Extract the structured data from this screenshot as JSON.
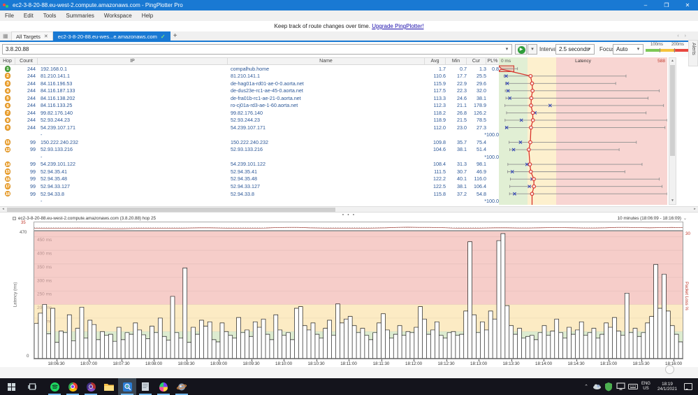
{
  "window": {
    "title": "ec2-3-8-20-88.eu-west-2.compute.amazonaws.com - PingPlotter Pro"
  },
  "menu": {
    "items": [
      "File",
      "Edit",
      "Tools",
      "Summaries",
      "Workspace",
      "Help"
    ]
  },
  "notice": {
    "text": "Keep track of route changes over time.",
    "link": "Upgrade PingPlotter!"
  },
  "tabs": {
    "all_targets": "All Targets",
    "active": "ec2-3-8-20-88.eu-wes...e.amazonaws.com"
  },
  "toolbar": {
    "target_value": "3.8.20.88",
    "interval_label": "Interval",
    "interval_value": "2.5 seconds",
    "focus_label": "Focus",
    "focus_value": "Auto",
    "legend_100": "100ms",
    "legend_200": "200ms"
  },
  "alerts_label": "Alerts",
  "icons": {
    "dropdown": "▾",
    "close": "✕",
    "check": "✓",
    "add": "+",
    "play": "▶",
    "up": "▲",
    "down": "▼",
    "left": "◂",
    "right": "▸",
    "grid": "▦",
    "dots": "● ● ●",
    "chevron_up": "⌃",
    "minimize": "–",
    "maximize": "❐",
    "range_dd": "⌄"
  },
  "table": {
    "headers": {
      "hop": "Hop",
      "count": "Count",
      "ip": "IP",
      "name": "Name",
      "avg": "Avg",
      "min": "Min",
      "cur": "Cur",
      "pl": "PL%"
    },
    "latency_header": "Latency",
    "scale_left": "0 ms",
    "scale_right": "588",
    "rows": [
      {
        "hop": "1",
        "badge": "green",
        "count": "244",
        "ip": "192.168.0.1",
        "name": "compalhub.home",
        "avg": "1.7",
        "min": "0.7",
        "cur": "1.3",
        "pl": "0.8",
        "max": 65,
        "selected": true
      },
      {
        "hop": "2",
        "badge": "orange",
        "count": "244",
        "ip": "81.210.141.1",
        "name": "81.210.141.1",
        "avg": "110.6",
        "min": "17.7",
        "cur": "25.5",
        "pl": "",
        "max": 444
      },
      {
        "hop": "3",
        "badge": "orange",
        "count": "244",
        "ip": "84.116.196.53",
        "name": "de-hag01a-rd01-ae-0-0.aorta.net",
        "avg": "115.9",
        "min": "22.9",
        "cur": "29.6",
        "pl": "",
        "max": 408
      },
      {
        "hop": "4",
        "badge": "orange",
        "count": "244",
        "ip": "84.116.187.133",
        "name": "de-dus23e-rc1-ae-45-0.aorta.net",
        "avg": "117.5",
        "min": "22.3",
        "cur": "32.0",
        "pl": "",
        "max": 560
      },
      {
        "hop": "5",
        "badge": "orange",
        "count": "244",
        "ip": "84.116.138.202",
        "name": "de-fra01b-rc1-ae-21-0.aorta.net",
        "avg": "113.3",
        "min": "24.6",
        "cur": "38.1",
        "pl": "",
        "max": 521
      },
      {
        "hop": "6",
        "badge": "orange",
        "count": "244",
        "ip": "84.116.133.25",
        "name": "ro-cj01a-rd3-ae-1-60.aorta.net",
        "avg": "112.3",
        "min": "21.1",
        "cur": "178.9",
        "pl": "",
        "max": 575
      },
      {
        "hop": "7",
        "badge": "orange",
        "count": "244",
        "ip": "99.82.176.140",
        "name": "99.82.176.140",
        "avg": "118.2",
        "min": "26.8",
        "cur": "126.2",
        "pl": "",
        "max": 514
      },
      {
        "hop": "8",
        "badge": "orange",
        "count": "244",
        "ip": "52.93.244.23",
        "name": "52.93.244.23",
        "avg": "118.9",
        "min": "21.5",
        "cur": "78.5",
        "pl": "",
        "max": 588
      },
      {
        "hop": "9",
        "badge": "orange",
        "count": "244",
        "ip": "54.239.107.171",
        "name": "54.239.107.171",
        "avg": "112.0",
        "min": "23.0",
        "cur": "27.3",
        "pl": "",
        "max": 580
      },
      {
        "hop": "",
        "badge": "",
        "count": "",
        "ip": "-",
        "name": "",
        "avg": "",
        "min": "",
        "cur": "*",
        "pl": "100.0",
        "max": null
      },
      {
        "hop": "11",
        "badge": "orange",
        "count": "99",
        "ip": "150.222.240.232",
        "name": "150.222.240.232",
        "avg": "109.8",
        "min": "35.7",
        "cur": "75.4",
        "pl": "",
        "max": 480
      },
      {
        "hop": "12",
        "badge": "orange",
        "count": "99",
        "ip": "52.93.133.216",
        "name": "52.93.133.216",
        "avg": "104.6",
        "min": "38.1",
        "cur": "51.4",
        "pl": "",
        "max": 420
      },
      {
        "hop": "",
        "badge": "",
        "count": "",
        "ip": "-",
        "name": "",
        "avg": "",
        "min": "",
        "cur": "*",
        "pl": "100.0",
        "max": null
      },
      {
        "hop": "14",
        "badge": "orange",
        "count": "99",
        "ip": "54.239.101.122",
        "name": "54.239.101.122",
        "avg": "108.4",
        "min": "31.3",
        "cur": "98.1",
        "pl": "",
        "max": 500
      },
      {
        "hop": "15",
        "badge": "orange",
        "count": "99",
        "ip": "52.94.35.41",
        "name": "52.94.35.41",
        "avg": "111.5",
        "min": "30.7",
        "cur": "46.9",
        "pl": "",
        "max": 440
      },
      {
        "hop": "16",
        "badge": "orange",
        "count": "99",
        "ip": "52.94.35.48",
        "name": "52.94.35.48",
        "avg": "122.2",
        "min": "40.1",
        "cur": "116.0",
        "pl": "",
        "max": 560
      },
      {
        "hop": "17",
        "badge": "orange",
        "count": "99",
        "ip": "52.94.33.127",
        "name": "52.94.33.127",
        "avg": "122.5",
        "min": "38.1",
        "cur": "106.4",
        "pl": "",
        "max": 570
      },
      {
        "hop": "18",
        "badge": "orange",
        "count": "99",
        "ip": "52.94.33.8",
        "name": "52.94.33.8",
        "avg": "115.8",
        "min": "37.2",
        "cur": "54.8",
        "pl": "",
        "max": 588
      },
      {
        "hop": "",
        "badge": "",
        "count": "",
        "ip": "-",
        "name": "",
        "avg": "",
        "min": "",
        "cur": "*",
        "pl": "100.0",
        "max": null
      }
    ]
  },
  "timeline": {
    "title_left": "ec2-3-8-20-88.eu-west-2.compute.amazonaws.com (3.8.20.88) hop 25",
    "title_right": "10 minutes (18:06:09 - 18:16:09)",
    "pl_strip_max": "35",
    "lat_axis_max": "470",
    "lat_axis_min": "0",
    "pl_axis_max": "30",
    "left_axis_label": "Latency (ms)",
    "right_axis_label": "Packet Loss %",
    "grid_labels": [
      "450 ms",
      "400 ms",
      "350 ms",
      "300 ms",
      "250 ms",
      "200 ms",
      "150 ms",
      "100 ms",
      "50 ms"
    ],
    "time_ticks": [
      "18:06:30",
      "18:07:00",
      "18:07:30",
      "18:08:00",
      "18:08:30",
      "18:09:00",
      "18:09:30",
      "18:10:00",
      "18:10:30",
      "18:11:00",
      "18:11:30",
      "18:12:00",
      "18:12:30",
      "18:13:00",
      "18:13:30",
      "18:14:00",
      "18:14:30",
      "18:15:00",
      "18:15:30",
      "18:16:00"
    ]
  },
  "chart_data": [
    {
      "type": "bar",
      "name": "latency-timeline",
      "title": "ec2-3-8-20-88.eu-west-2.compute.amazonaws.com (3.8.20.88) hop 25",
      "x_range": [
        "18:06:09",
        "18:16:09"
      ],
      "ylabel": "Latency (ms)",
      "ylim": [
        0,
        470
      ],
      "y2label": "Packet Loss %",
      "y2lim": [
        0,
        30
      ],
      "zone_bounds_ms": {
        "green_max": 100,
        "yellow_max": 200
      },
      "values": [
        130,
        168,
        200,
        92,
        186,
        60,
        102,
        96,
        162,
        66,
        112,
        190,
        76,
        142,
        126,
        70,
        100,
        86,
        90,
        64,
        116,
        70,
        96,
        90,
        132,
        106,
        88,
        74,
        120,
        96,
        150,
        82,
        68,
        230,
        96,
        76,
        335,
        60,
        116,
        90,
        142,
        120,
        136,
        70,
        62,
        132,
        100,
        86,
        76,
        152,
        96,
        106,
        82,
        136,
        116,
        146,
        90,
        70,
        162,
        106,
        86,
        96,
        70,
        186,
        192,
        122,
        106,
        132,
        90,
        76,
        112,
        142,
        86,
        202,
        132,
        146,
        156,
        122,
        96,
        112,
        86,
        70,
        96,
        132,
        166,
        106,
        76,
        90,
        122,
        86,
        100,
        96,
        116,
        192,
        146,
        90,
        106,
        136,
        86,
        76,
        96,
        100,
        86,
        90,
        176,
        432,
        162,
        96,
        136,
        106,
        176,
        146,
        436,
        462,
        196,
        122,
        90,
        112,
        76,
        82,
        86,
        70,
        96,
        122,
        86,
        102,
        146,
        96,
        76,
        116,
        90,
        106,
        136,
        86,
        96,
        112,
        76,
        90,
        132,
        116,
        152,
        102,
        86,
        242,
        96,
        112,
        82,
        96,
        132,
        156,
        348,
        186,
        312,
        176,
        122,
        90,
        62
      ]
    },
    {
      "type": "line",
      "name": "packet-loss-strip",
      "ylim": [
        0,
        35
      ],
      "values": [
        8,
        8,
        8,
        8,
        9,
        8,
        7,
        6,
        6,
        7,
        8,
        8,
        8,
        8,
        9,
        10,
        10,
        9,
        8,
        8,
        8,
        9,
        11,
        12,
        12,
        10,
        9,
        8,
        8,
        8,
        8,
        9,
        10,
        12,
        13,
        12,
        12,
        11,
        9,
        8,
        8,
        9,
        10,
        10,
        9,
        9,
        10,
        11,
        11,
        10,
        9,
        9,
        10,
        12,
        12,
        11,
        10,
        11,
        12,
        11
      ]
    },
    {
      "type": "range",
      "name": "hop-latency-column",
      "scale_ms": [
        0,
        588
      ],
      "zone_bounds_ms": {
        "green_max": 100,
        "yellow_max": 200
      }
    }
  ],
  "taskbar": {
    "tray": {
      "lang_top": "ENG",
      "lang_bottom": "US",
      "time": "18:19",
      "date": "24/1/2021"
    }
  }
}
